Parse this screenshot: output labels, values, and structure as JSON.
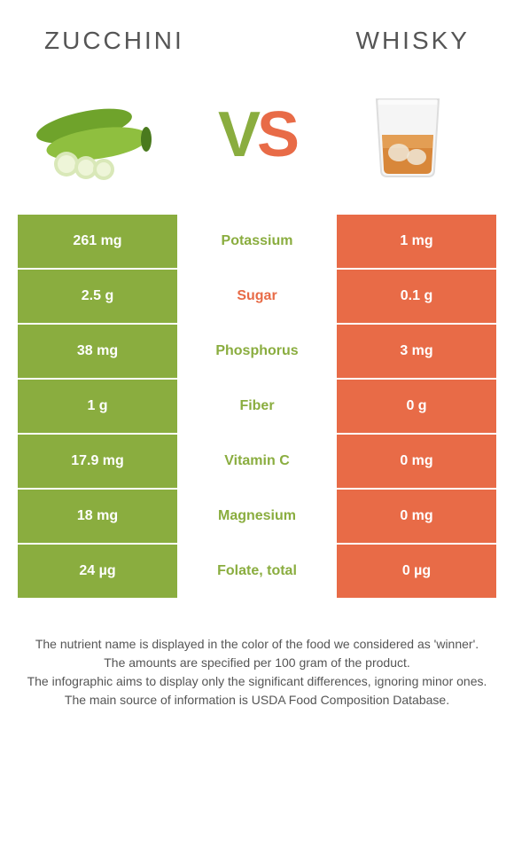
{
  "header": {
    "left_title": "Zucchini",
    "right_title": "Whisky"
  },
  "vs": {
    "v": "V",
    "s": "S"
  },
  "colors": {
    "left": "#8aad3f",
    "right": "#e86b47",
    "bg": "#ffffff"
  },
  "table": {
    "rows": [
      {
        "left": "261 mg",
        "label": "Potassium",
        "right": "1 mg",
        "winner": "left"
      },
      {
        "left": "2.5 g",
        "label": "Sugar",
        "right": "0.1 g",
        "winner": "right"
      },
      {
        "left": "38 mg",
        "label": "Phosphorus",
        "right": "3 mg",
        "winner": "left"
      },
      {
        "left": "1 g",
        "label": "Fiber",
        "right": "0 g",
        "winner": "left"
      },
      {
        "left": "17.9 mg",
        "label": "Vitamin C",
        "right": "0 mg",
        "winner": "left"
      },
      {
        "left": "18 mg",
        "label": "Magnesium",
        "right": "0 mg",
        "winner": "left"
      },
      {
        "left": "24 µg",
        "label": "Folate, total",
        "right": "0 µg",
        "winner": "left"
      }
    ]
  },
  "footer": {
    "line1": "The nutrient name is displayed in the color of the food we considered as 'winner'.",
    "line2": "The amounts are specified per 100 gram of the product.",
    "line3": "The infographic aims to display only the significant differences, ignoring minor ones.",
    "line4": "The main source of information is USDA Food Composition Database."
  }
}
